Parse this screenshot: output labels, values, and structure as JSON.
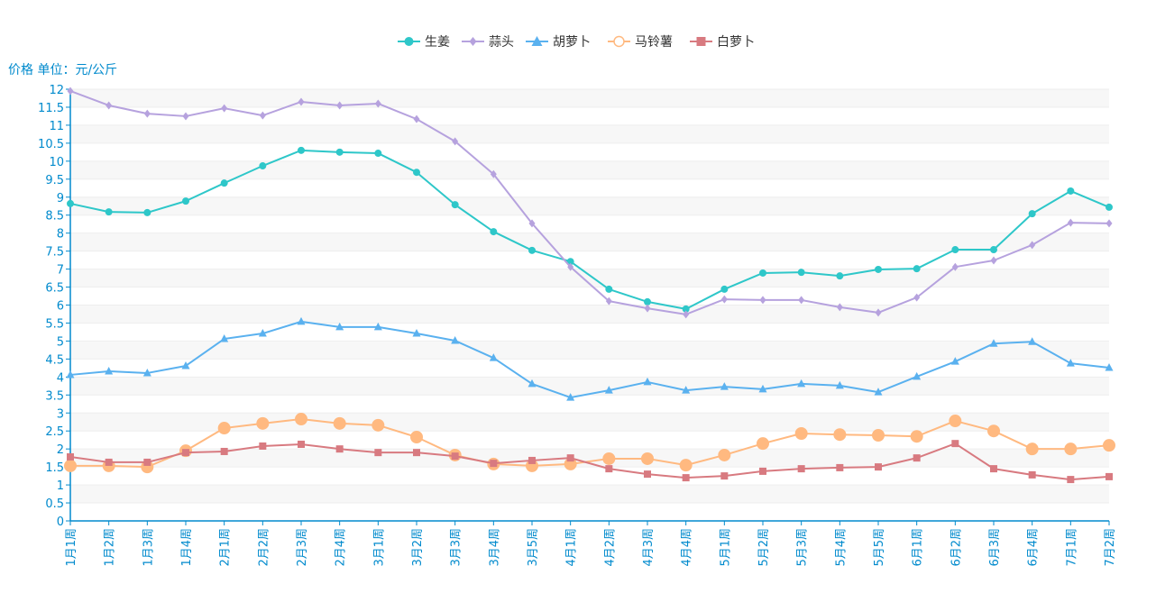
{
  "chart_data": {
    "type": "line",
    "title": "",
    "ylabel": "价格 单位：元/公斤",
    "xlabel": "",
    "ylim": [
      0,
      12
    ],
    "ytick_step": 0.5,
    "yticks": [
      "0",
      "0.5",
      "1",
      "1.5",
      "2",
      "2.5",
      "3",
      "3.5",
      "4",
      "4.5",
      "5",
      "5.5",
      "6",
      "6.5",
      "7",
      "7.5",
      "8",
      "8.5",
      "9",
      "9.5",
      "10",
      "10.5",
      "11",
      "11.5",
      "12"
    ],
    "grid": true,
    "legend_position": "top-center",
    "categories": [
      "1月1周",
      "1月2周",
      "1月3周",
      "1月4周",
      "2月1周",
      "2月2周",
      "2月3周",
      "2月4周",
      "3月1周",
      "3月2周",
      "3月3周",
      "3月4周",
      "3月5周",
      "4月1周",
      "4月2周",
      "4月3周",
      "4月4周",
      "5月1周",
      "5月2周",
      "5月3周",
      "5月4周",
      "5月5周",
      "6月1周",
      "6月2周",
      "6月3周",
      "6月4周",
      "7月1周",
      "7月2周"
    ],
    "series": [
      {
        "name": "生姜",
        "color": "#2ec7c9",
        "marker": "circle",
        "values": [
          8.82,
          8.59,
          8.57,
          8.89,
          9.39,
          9.87,
          10.3,
          10.25,
          10.22,
          9.69,
          8.79,
          8.04,
          7.52,
          7.21,
          6.44,
          6.09,
          5.89,
          6.44,
          6.89,
          6.91,
          6.81,
          6.99,
          7.01,
          7.54,
          7.54,
          8.54,
          9.17,
          8.72
        ]
      },
      {
        "name": "蒜头",
        "color": "#b6a2de",
        "marker": "diamond",
        "values": [
          11.95,
          11.55,
          11.32,
          11.25,
          11.47,
          11.27,
          11.65,
          11.55,
          11.6,
          11.17,
          10.55,
          9.64,
          8.27,
          7.06,
          6.11,
          5.91,
          5.74,
          6.16,
          6.14,
          6.14,
          5.94,
          5.79,
          6.21,
          7.06,
          7.24,
          7.67,
          8.29,
          8.27
        ]
      },
      {
        "name": "胡萝卜",
        "color": "#5ab1ef",
        "marker": "triangle",
        "values": [
          4.06,
          4.16,
          4.11,
          4.31,
          5.06,
          5.21,
          5.54,
          5.39,
          5.39,
          5.21,
          5.01,
          4.53,
          3.81,
          3.43,
          3.63,
          3.86,
          3.63,
          3.73,
          3.66,
          3.81,
          3.76,
          3.58,
          4.01,
          4.43,
          4.93,
          4.98,
          4.38,
          4.26
        ]
      },
      {
        "name": "马铃薯",
        "color": "#ffb980",
        "marker": "emptyCircle",
        "values": [
          1.53,
          1.53,
          1.5,
          1.95,
          2.58,
          2.71,
          2.83,
          2.71,
          2.66,
          2.33,
          1.83,
          1.58,
          1.53,
          1.58,
          1.73,
          1.73,
          1.55,
          1.83,
          2.15,
          2.43,
          2.4,
          2.38,
          2.35,
          2.78,
          2.5,
          2.0,
          2.0,
          2.1
        ]
      },
      {
        "name": "白萝卜",
        "color": "#d87a80",
        "marker": "square",
        "values": [
          1.78,
          1.63,
          1.63,
          1.9,
          1.93,
          2.08,
          2.13,
          2.0,
          1.9,
          1.9,
          1.8,
          1.6,
          1.68,
          1.75,
          1.45,
          1.3,
          1.2,
          1.25,
          1.38,
          1.45,
          1.48,
          1.5,
          1.75,
          2.15,
          1.45,
          1.28,
          1.15,
          1.23
        ]
      }
    ],
    "axis_color": "#008acd",
    "grid_band_color": "#f7f7f7",
    "grid_line_color": "#eeeeee"
  }
}
